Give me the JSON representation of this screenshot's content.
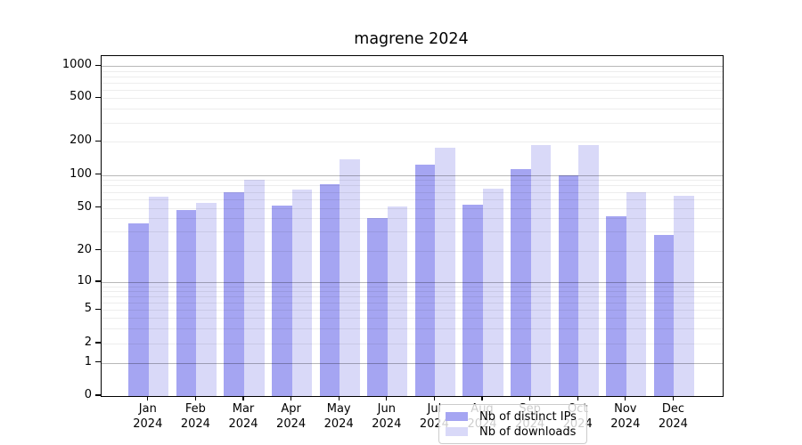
{
  "chart_data": {
    "type": "bar",
    "title": "magrene 2024",
    "categories": [
      "Jan",
      "Feb",
      "Mar",
      "Apr",
      "May",
      "Jun",
      "Jul",
      "Aug",
      "Sep",
      "Oct",
      "Nov",
      "Dec"
    ],
    "category_year_line": "2024",
    "series": [
      {
        "name": "Nb of distinct IPs",
        "color": "#a5a5f2",
        "values": [
          36,
          48,
          69,
          53,
          82,
          40,
          125,
          54,
          113,
          99,
          42,
          28
        ]
      },
      {
        "name": "Nb of downloads",
        "color": "#d9d9f8",
        "values": [
          63,
          56,
          91,
          73,
          139,
          52,
          175,
          75,
          186,
          187,
          69,
          65
        ]
      }
    ],
    "yticks": [
      0,
      1,
      2,
      5,
      10,
      20,
      50,
      100,
      200,
      500,
      1000
    ],
    "ylim": [
      0,
      1000
    ],
    "yscale": "log-like (symlog, compressed below 10)",
    "xlabel": "",
    "ylabel": "",
    "grid": true,
    "grid_major_at": [
      1,
      10,
      100,
      1000
    ],
    "legend_position": "bottom-center-inside"
  }
}
